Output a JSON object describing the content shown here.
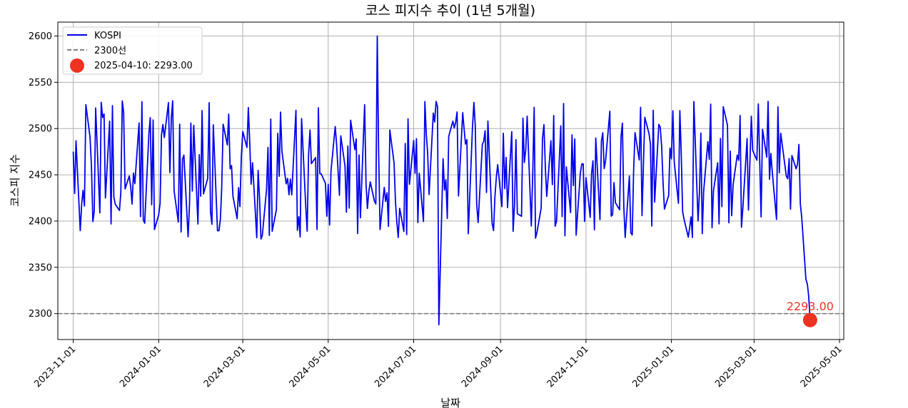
{
  "chart_data": {
    "type": "line",
    "title": "코스 피지수 추이 (1년 5개월)",
    "xlabel": "날짜",
    "ylabel": "코스피 지수",
    "xlim": [
      "2023-10-21",
      "2025-05-04"
    ],
    "ylim": [
      2272,
      2615
    ],
    "x_ticks": [
      "2023-11-01",
      "2024-01-01",
      "2024-03-01",
      "2024-05-01",
      "2024-07-01",
      "2024-09-01",
      "2024-11-01",
      "2025-01-01",
      "2025-03-01",
      "2025-05-01"
    ],
    "y_ticks": [
      2300,
      2350,
      2400,
      2450,
      2500,
      2550,
      2600
    ],
    "grid": true,
    "legend_position": "top-left",
    "series": [
      {
        "name": "KOSPI",
        "color": "#0000ee",
        "x": [
          "2023-11-01",
          "2023-11-15",
          "2023-12-01",
          "2023-12-15",
          "2024-01-01",
          "2024-01-15",
          "2024-02-01",
          "2024-02-15",
          "2024-03-01",
          "2024-03-15",
          "2024-04-01",
          "2024-04-15",
          "2024-05-01",
          "2024-05-15",
          "2024-06-01",
          "2024-06-15",
          "2024-07-01",
          "2024-07-15",
          "2024-08-01",
          "2024-08-15",
          "2024-09-01",
          "2024-09-15",
          "2024-10-01",
          "2024-10-15",
          "2024-11-01",
          "2024-11-15",
          "2024-12-01",
          "2024-12-15",
          "2025-01-01",
          "2025-01-15",
          "2025-02-01",
          "2025-02-15",
          "2025-03-01",
          "2025-03-15",
          "2025-04-01",
          "2025-04-10"
        ],
        "values": [
          2475,
          2440,
          2460,
          2430,
          2470,
          2450,
          2440,
          2460,
          2450,
          2430,
          2460,
          2470,
          2450,
          2460,
          2470,
          2440,
          2450,
          2430,
          2460,
          2450,
          2470,
          2460,
          2450,
          2440,
          2460,
          2450,
          2470,
          2450,
          2440,
          2430,
          2450,
          2470,
          2450,
          2440,
          2430,
          2293
        ],
        "min_point": {
          "date": "2024-07-19",
          "value": 2288
        },
        "max_point": {
          "date": "2024-06-05",
          "value": 2600
        }
      }
    ],
    "reference_line": {
      "label": "2300선",
      "value": 2300,
      "color": "#808080"
    },
    "highlight_point": {
      "label": "2025-04-10: 2293.00",
      "date": "2025-04-10",
      "value": 2293,
      "annotation": "2293.00",
      "color": "#ee3322"
    }
  }
}
